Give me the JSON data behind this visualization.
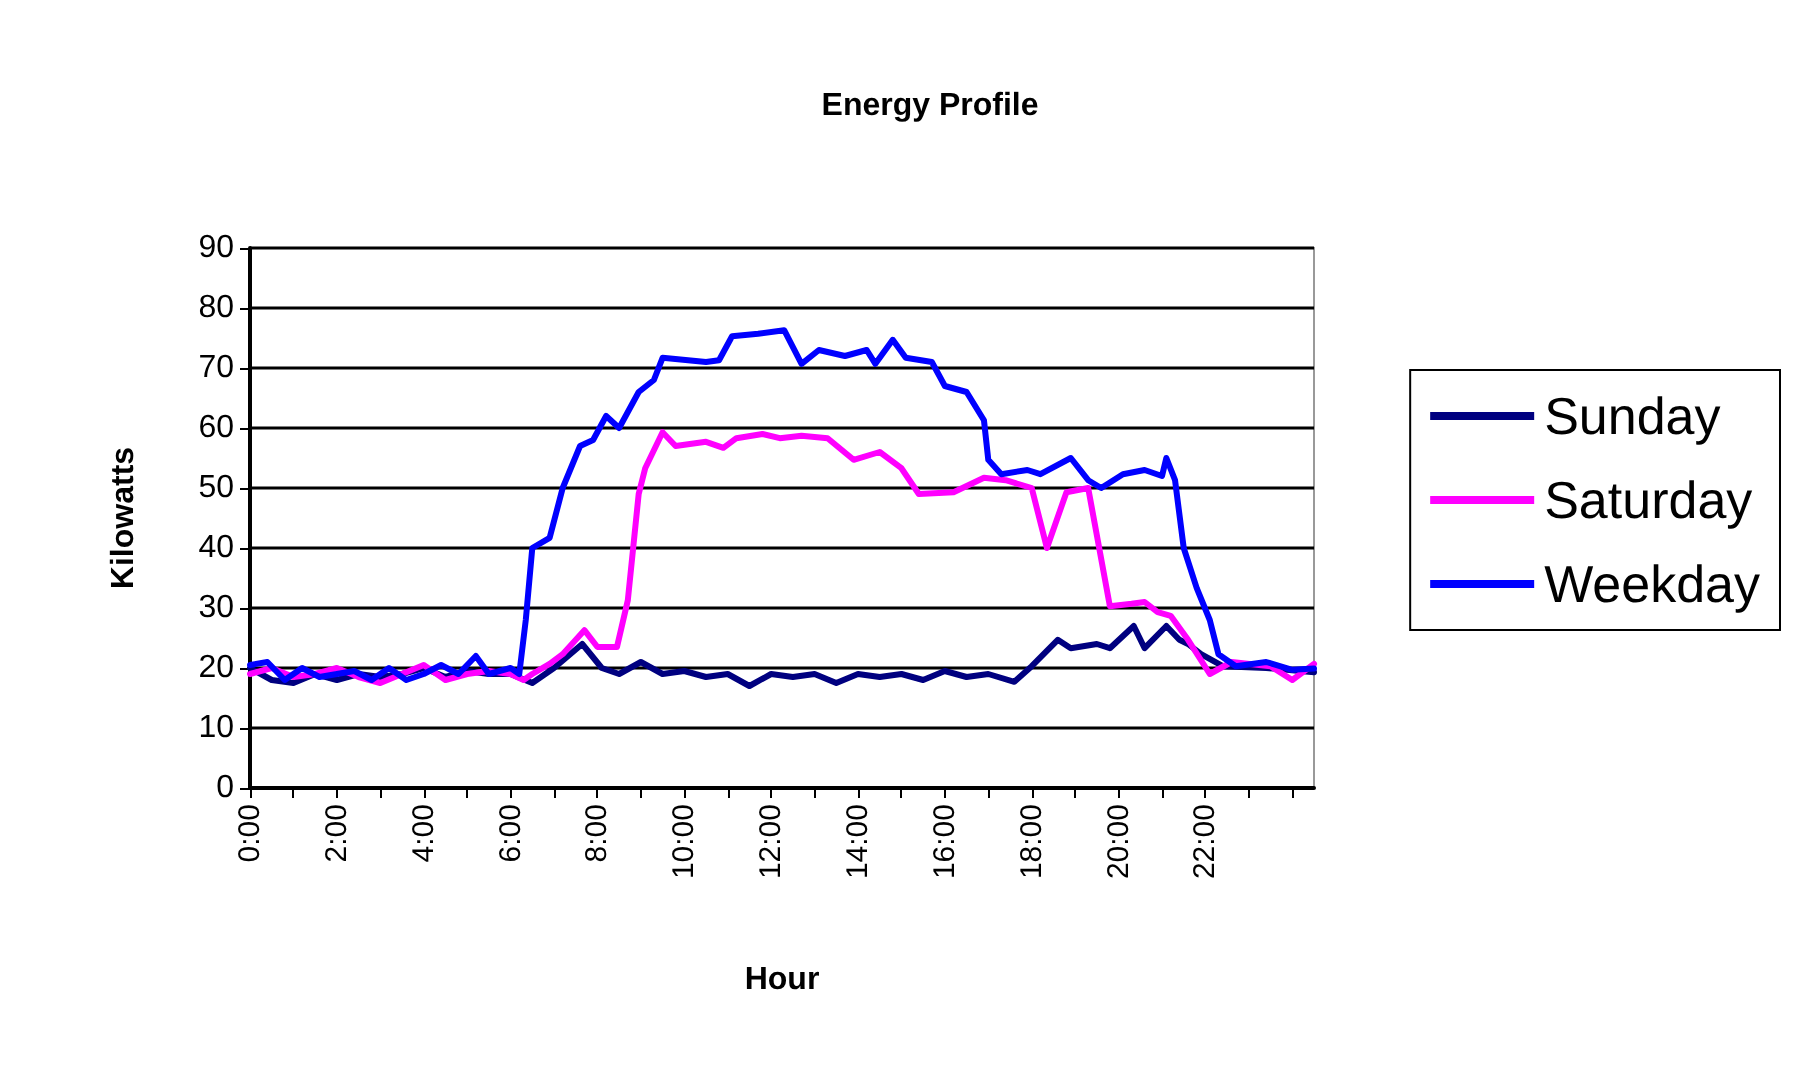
{
  "chart_data": {
    "type": "line",
    "title": "Energy Profile",
    "xlabel": "Hour",
    "ylabel": "Kilowatts",
    "xlim": [
      0,
      24.5
    ],
    "ylim": [
      0,
      90
    ],
    "xticks": [
      {
        "value": 0,
        "label": "0:00"
      },
      {
        "value": 1,
        "label": null
      },
      {
        "value": 2,
        "label": "2:00"
      },
      {
        "value": 3,
        "label": null
      },
      {
        "value": 4,
        "label": "4:00"
      },
      {
        "value": 5,
        "label": null
      },
      {
        "value": 6,
        "label": "6:00"
      },
      {
        "value": 7,
        "label": null
      },
      {
        "value": 8,
        "label": "8:00"
      },
      {
        "value": 9,
        "label": null
      },
      {
        "value": 10,
        "label": "10:00"
      },
      {
        "value": 11,
        "label": null
      },
      {
        "value": 12,
        "label": "12:00"
      },
      {
        "value": 13,
        "label": null
      },
      {
        "value": 14,
        "label": "14:00"
      },
      {
        "value": 15,
        "label": null
      },
      {
        "value": 16,
        "label": "16:00"
      },
      {
        "value": 17,
        "label": null
      },
      {
        "value": 18,
        "label": "18:00"
      },
      {
        "value": 19,
        "label": null
      },
      {
        "value": 20,
        "label": "20:00"
      },
      {
        "value": 21,
        "label": null
      },
      {
        "value": 22,
        "label": "22:00"
      },
      {
        "value": 23,
        "label": null
      },
      {
        "value": 24,
        "label": null
      }
    ],
    "yticks": [
      0,
      10,
      20,
      30,
      40,
      50,
      60,
      70,
      80,
      90
    ],
    "grid": "y",
    "legend": "right",
    "marker": "none",
    "line_style": "solid",
    "series": [
      {
        "name": "Sunday",
        "color": "#000080",
        "x": [
          0,
          0.5,
          1,
          1.5,
          2,
          2.5,
          3,
          3.5,
          4,
          4.5,
          5,
          5.5,
          6,
          6.5,
          7,
          7.65,
          8.1,
          8.5,
          9,
          9.5,
          10,
          10.5,
          11,
          11.5,
          12,
          12.5,
          13,
          13.5,
          14,
          14.5,
          15,
          15.5,
          16,
          16.5,
          17,
          17.6,
          18,
          18.6,
          18.9,
          19.5,
          19.8,
          20.35,
          20.6,
          21.1,
          21.4,
          21.6,
          21.9,
          22.4,
          23.4,
          24.5
        ],
        "values": [
          20,
          18,
          17.5,
          19,
          18,
          19,
          18.5,
          19,
          20,
          18.5,
          19.5,
          19,
          19,
          17.5,
          20,
          24,
          20,
          19,
          21,
          19,
          19.5,
          18.5,
          19,
          17,
          19,
          18.5,
          19,
          17.5,
          19,
          18.5,
          19,
          18,
          19.5,
          18.5,
          19,
          17.7,
          20.3,
          24.7,
          23.3,
          24,
          23.3,
          27,
          23.3,
          27,
          24.7,
          24,
          22.3,
          20.3,
          20,
          19.3
        ]
      },
      {
        "name": "Saturday",
        "color": "#ff00ff",
        "x": [
          0,
          0.5,
          1,
          1.5,
          2,
          2.5,
          3,
          3.5,
          4,
          4.5,
          5,
          5.5,
          6,
          6.3,
          6.5,
          6.9,
          7.2,
          7.7,
          8.0,
          8.45,
          8.7,
          8.95,
          9.1,
          9.5,
          9.8,
          10.5,
          10.9,
          11.2,
          11.8,
          12.2,
          12.7,
          13.3,
          13.9,
          14.5,
          15.0,
          15.4,
          16.2,
          16.9,
          17.4,
          18.0,
          18.35,
          18.8,
          19.3,
          19.8,
          20.3,
          20.6,
          20.9,
          21.2,
          21.6,
          22.1,
          22.6,
          23.5,
          24.0,
          24.5
        ],
        "values": [
          19,
          20,
          18.5,
          19,
          20,
          18.5,
          17.5,
          19,
          20.5,
          18,
          19,
          19.5,
          19,
          18,
          19,
          20.7,
          22.3,
          26.3,
          23.5,
          23.5,
          31.3,
          49,
          53.3,
          59.3,
          57,
          57.7,
          56.7,
          58.3,
          59,
          58.3,
          58.7,
          58.3,
          54.7,
          56,
          53.3,
          49,
          49.3,
          51.7,
          51.3,
          50,
          40,
          49.3,
          50,
          30.3,
          30.7,
          31,
          29.3,
          28.7,
          24.7,
          19,
          21,
          20.3,
          18,
          20.7
        ]
      },
      {
        "name": "Weekday",
        "color": "#0000ff",
        "x": [
          0,
          0.4,
          0.8,
          1.2,
          1.6,
          2.0,
          2.4,
          2.8,
          3.2,
          3.6,
          4,
          4.4,
          4.8,
          5.2,
          5.5,
          6.0,
          6.2,
          6.35,
          6.5,
          6.9,
          7.2,
          7.6,
          7.9,
          8.2,
          8.5,
          8.95,
          9.3,
          9.5,
          10.5,
          10.8,
          11.1,
          11.7,
          12.3,
          12.7,
          13.1,
          13.7,
          14.2,
          14.4,
          14.8,
          15.1,
          15.7,
          16.0,
          16.5,
          16.9,
          17.0,
          17.3,
          17.9,
          18.2,
          18.9,
          19.3,
          19.6,
          20.1,
          20.6,
          21.0,
          21.1,
          21.3,
          21.5,
          21.8,
          22.1,
          22.3,
          22.7,
          23.4,
          24.0,
          24.5
        ],
        "values": [
          20.5,
          21,
          18,
          20,
          18.5,
          19,
          19.5,
          18,
          20,
          18,
          19,
          20.5,
          19,
          22,
          19,
          20,
          19,
          28,
          40,
          41.7,
          50,
          57,
          58,
          62,
          60,
          66,
          68,
          71.7,
          71,
          71.3,
          75.3,
          75.7,
          76.3,
          70.7,
          73,
          72,
          73,
          70.7,
          74.7,
          71.7,
          71,
          67,
          66,
          61.3,
          54.7,
          52.3,
          53,
          52.3,
          55,
          51.3,
          50,
          52.3,
          53,
          52,
          55,
          51.3,
          40,
          33.3,
          28,
          22.3,
          20.3,
          21,
          19.7,
          19.9
        ]
      }
    ]
  }
}
